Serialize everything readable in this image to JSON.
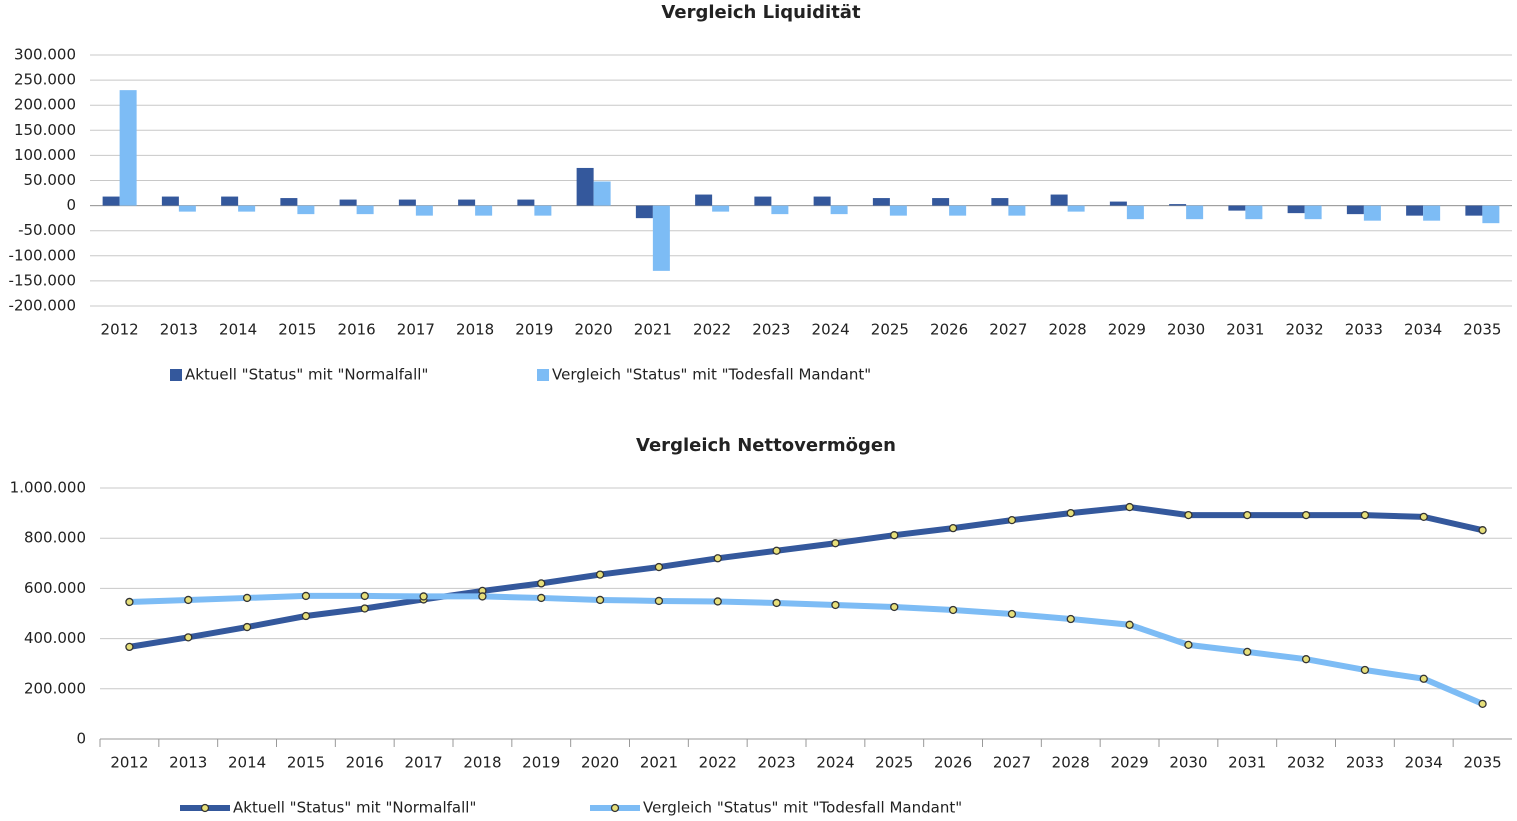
{
  "chart_data": [
    {
      "type": "bar",
      "title": "Vergleich Liquidität",
      "categories": [
        "2012",
        "2013",
        "2014",
        "2015",
        "2016",
        "2017",
        "2018",
        "2019",
        "2020",
        "2021",
        "2022",
        "2023",
        "2024",
        "2025",
        "2026",
        "2027",
        "2028",
        "2029",
        "2030",
        "2031",
        "2032",
        "2033",
        "2034",
        "2035"
      ],
      "series": [
        {
          "name": "Aktuell \"Status\" mit \"Normalfall\"",
          "color": "#34589c",
          "values": [
            18000,
            18000,
            18000,
            15000,
            12000,
            12000,
            12000,
            12000,
            75000,
            -25000,
            22000,
            18000,
            18000,
            15000,
            15000,
            15000,
            22000,
            8000,
            3000,
            -10000,
            -15000,
            -17000,
            -20000,
            -20000
          ]
        },
        {
          "name": "Vergleich \"Status\" mit \"Todesfall Mandant\"",
          "color": "#7dbcf5",
          "values": [
            230000,
            -12000,
            -12000,
            -17000,
            -17000,
            -20000,
            -20000,
            -20000,
            48000,
            -130000,
            -12000,
            -17000,
            -17000,
            -20000,
            -20000,
            -20000,
            -12000,
            -27000,
            -27000,
            -27000,
            -27000,
            -30000,
            -30000,
            -35000
          ]
        }
      ],
      "ylim": [
        -200000,
        300000
      ],
      "yticks": [
        {
          "value": -200000,
          "label": "-200.000"
        },
        {
          "value": -150000,
          "label": "-150.000"
        },
        {
          "value": -100000,
          "label": "-100.000"
        },
        {
          "value": -50000,
          "label": "-50.000"
        },
        0,
        {
          "value": 50000,
          "label": "50.000"
        },
        {
          "value": 100000,
          "label": "100.000"
        },
        {
          "value": 150000,
          "label": "150.000"
        },
        {
          "value": 200000,
          "label": "200.000"
        },
        {
          "value": 250000,
          "label": "250.000"
        },
        {
          "value": 300000,
          "label": "300.000"
        }
      ],
      "grid": true,
      "legend": "bottom"
    },
    {
      "type": "line",
      "title": "Vergleich Nettovermögen",
      "categories": [
        "2012",
        "2013",
        "2014",
        "2015",
        "2016",
        "2017",
        "2018",
        "2019",
        "2020",
        "2021",
        "2022",
        "2023",
        "2024",
        "2025",
        "2026",
        "2027",
        "2028",
        "2029",
        "2030",
        "2031",
        "2032",
        "2033",
        "2034",
        "2035"
      ],
      "series": [
        {
          "name": "Aktuell \"Status\" mit \"Normalfall\"",
          "color": "#34589c",
          "values": [
            367000,
            405000,
            446000,
            490000,
            520000,
            556000,
            590000,
            620000,
            655000,
            685000,
            720000,
            750000,
            780000,
            812000,
            840000,
            872000,
            900000,
            924000,
            892000,
            892000,
            892000,
            892000,
            885000,
            832000
          ]
        },
        {
          "name": "Vergleich \"Status\" mit \"Todesfall Mandant\"",
          "color": "#7dbcf5",
          "values": [
            546000,
            554000,
            562000,
            570000,
            570000,
            568000,
            568000,
            562000,
            554000,
            550000,
            548000,
            542000,
            534000,
            526000,
            514000,
            498000,
            478000,
            455000,
            375000,
            347000,
            318000,
            275000,
            240000,
            140000
          ]
        }
      ],
      "ylim": [
        0,
        1000000
      ],
      "yticks": [
        0,
        {
          "value": 200000,
          "label": "200.000"
        },
        {
          "value": 400000,
          "label": "400.000"
        },
        {
          "value": 600000,
          "label": "600.000"
        },
        {
          "value": 800000,
          "label": "800.000"
        },
        {
          "value": 1000000,
          "label": "1.000.000"
        }
      ],
      "grid": true,
      "legend": "bottom"
    }
  ]
}
